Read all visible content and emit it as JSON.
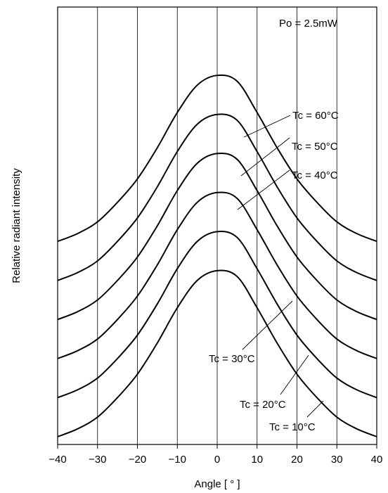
{
  "chart_data": {
    "type": "line",
    "xlabel": "Angle [ ° ]",
    "ylabel": "Relative radiant intensity",
    "xlim": [
      -40,
      40
    ],
    "xticks": [
      -40,
      -30,
      -20,
      -10,
      0,
      10,
      20,
      30,
      40
    ],
    "xtick_labels": [
      "−40",
      "−30",
      "−20",
      "−10",
      "0",
      "10",
      "20",
      "30",
      "40"
    ],
    "y_tick_labels_shown": false,
    "grid": "vertical",
    "annotation": "Po = 2.5mW",
    "x": [
      -40,
      -35,
      -30,
      -25,
      -20,
      -15,
      -10,
      -5,
      0,
      5,
      10,
      15,
      20,
      25,
      30,
      35,
      40
    ],
    "series": [
      {
        "name": "Tc = 60°C",
        "values": [
          5.2,
          5.4,
          5.7,
          6.2,
          6.8,
          7.6,
          8.5,
          9.2,
          9.45,
          9.3,
          8.5,
          7.6,
          6.8,
          6.2,
          5.7,
          5.4,
          5.2
        ]
      },
      {
        "name": "Tc = 50°C",
        "values": [
          4.2,
          4.4,
          4.7,
          5.2,
          5.8,
          6.6,
          7.5,
          8.2,
          8.45,
          8.3,
          7.5,
          6.6,
          5.8,
          5.2,
          4.7,
          4.4,
          4.2
        ]
      },
      {
        "name": "Tc = 40°C",
        "values": [
          3.2,
          3.4,
          3.7,
          4.2,
          4.8,
          5.6,
          6.5,
          7.2,
          7.45,
          7.3,
          6.5,
          5.6,
          4.8,
          4.2,
          3.7,
          3.4,
          3.2
        ]
      },
      {
        "name": "Tc = 30°C",
        "values": [
          2.2,
          2.4,
          2.7,
          3.2,
          3.8,
          4.6,
          5.5,
          6.2,
          6.45,
          6.3,
          5.5,
          4.6,
          3.8,
          3.2,
          2.7,
          2.4,
          2.2
        ]
      },
      {
        "name": "Tc = 20°C",
        "values": [
          1.2,
          1.4,
          1.7,
          2.2,
          2.8,
          3.6,
          4.5,
          5.2,
          5.45,
          5.3,
          4.5,
          3.6,
          2.8,
          2.2,
          1.7,
          1.4,
          1.2
        ]
      },
      {
        "name": "Tc = 10°C",
        "values": [
          0.2,
          0.4,
          0.7,
          1.2,
          1.8,
          2.6,
          3.5,
          4.2,
          4.45,
          4.3,
          3.5,
          2.6,
          1.8,
          1.2,
          0.7,
          0.4,
          0.2
        ]
      }
    ],
    "ylim": [
      0,
      11.2
    ],
    "colors": {
      "line": "#000000",
      "grid": "#000000",
      "background": "#ffffff"
    }
  }
}
